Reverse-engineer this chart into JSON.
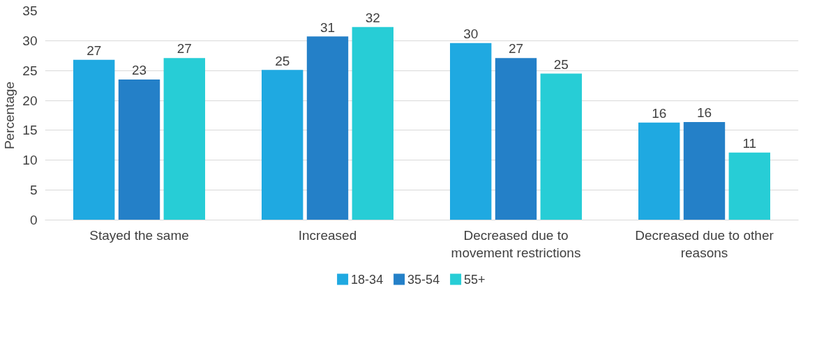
{
  "chart_data": {
    "type": "bar",
    "ylabel": "Percentage",
    "categories": [
      "Stayed the same",
      "Increased",
      "Decreased due to movement restrictions",
      "Decreased due to other reasons"
    ],
    "series": [
      {
        "name": "18-34",
        "color": "#1fa9e1",
        "values": [
          26.8,
          25.1,
          29.6,
          16.3
        ],
        "value_labels": [
          "27",
          "25",
          "30",
          "16"
        ]
      },
      {
        "name": "35-54",
        "color": "#2480c8",
        "values": [
          23.5,
          30.7,
          27.1,
          16.4
        ],
        "value_labels": [
          "23",
          "31",
          "27",
          "16"
        ]
      },
      {
        "name": "55+",
        "color": "#27cdd6",
        "values": [
          27.1,
          32.3,
          24.5,
          11.3
        ],
        "value_labels": [
          "27",
          "32",
          "25",
          "11"
        ]
      }
    ],
    "ylim": [
      0,
      35
    ],
    "yticks": [
      0,
      5,
      10,
      15,
      20,
      25,
      30,
      35
    ],
    "grid": "y",
    "legend": "bottom"
  }
}
